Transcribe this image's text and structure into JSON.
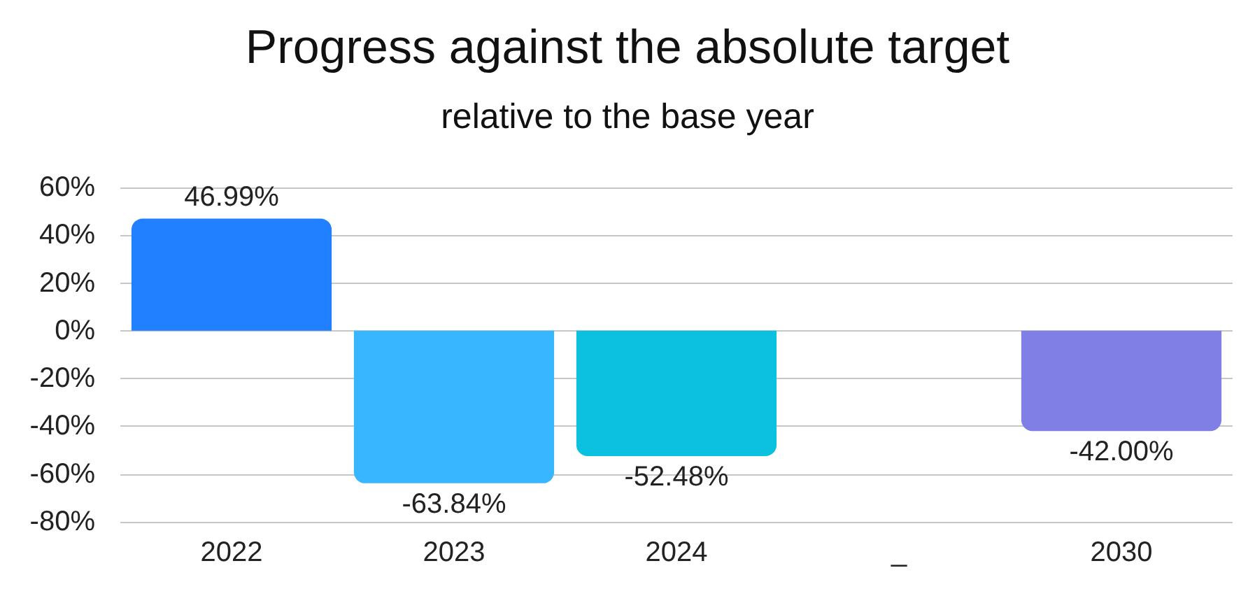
{
  "chart_data": {
    "type": "bar",
    "title": "Progress against the absolute target",
    "subtitle": "relative to the base year",
    "categories": [
      "2022",
      "2023",
      "2024",
      "_",
      "2030"
    ],
    "values": [
      46.99,
      -63.84,
      -52.48,
      null,
      -42.0
    ],
    "colors": [
      "#2080ff",
      "#38b6ff",
      "#0cc0df",
      null,
      "#7f7fe6"
    ],
    "value_labels": [
      "46.99%",
      "-63.84%",
      "-52.48%",
      null,
      "-42.00%"
    ],
    "ylim": [
      -80,
      60
    ],
    "yticks": [
      {
        "value": 60,
        "label": "60%"
      },
      {
        "value": 40,
        "label": "40%"
      },
      {
        "value": 20,
        "label": "20%"
      },
      {
        "value": 0,
        "label": "0%"
      },
      {
        "value": -20,
        "label": "-20%"
      },
      {
        "value": -40,
        "label": "-40%"
      },
      {
        "value": -60,
        "label": "-60%"
      },
      {
        "value": -80,
        "label": "-80%"
      }
    ],
    "grid": "y"
  }
}
